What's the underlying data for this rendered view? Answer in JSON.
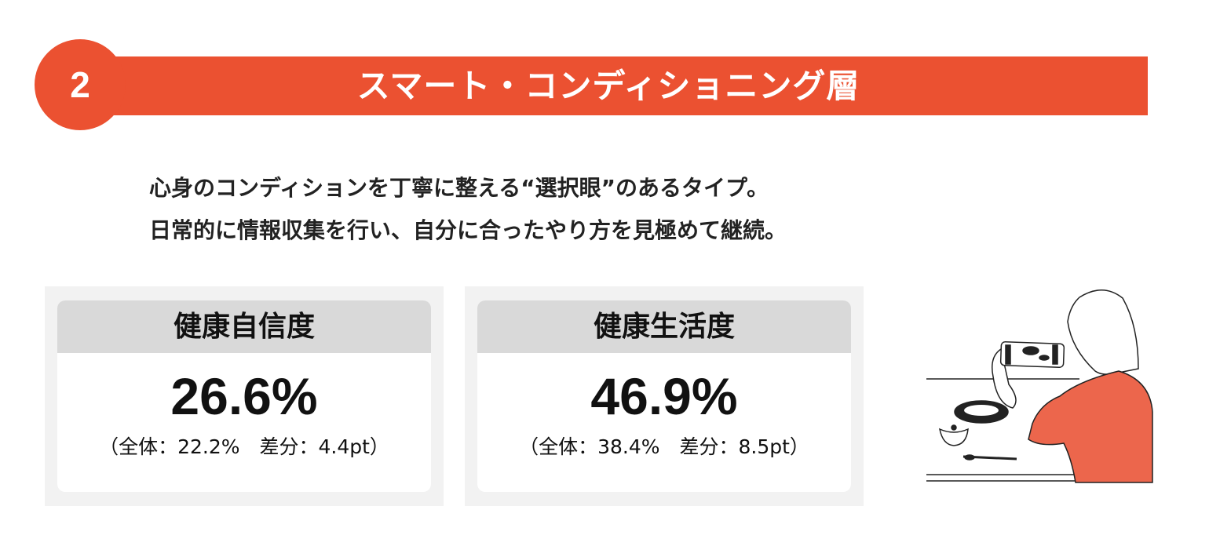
{
  "header": {
    "number": "2",
    "title": "スマート・コンディショニング層",
    "accent_color": "#eb5131"
  },
  "description": {
    "lines": [
      "心身のコンディションを丁寧に整える“選択眼”のあるタイプ。",
      "日常的に情報収集を行い、自分に合ったやり方を見極めて継続。"
    ]
  },
  "cards": [
    {
      "label": "健康自信度",
      "value": "26.6%",
      "detail": "（全体：22.2%　差分：4.4pt）"
    },
    {
      "label": "健康生活度",
      "value": "46.9%",
      "detail": "（全体：38.4%　差分：8.5pt）"
    }
  ],
  "illustration": {
    "icon": "woman-photographing-meal-illustration"
  }
}
